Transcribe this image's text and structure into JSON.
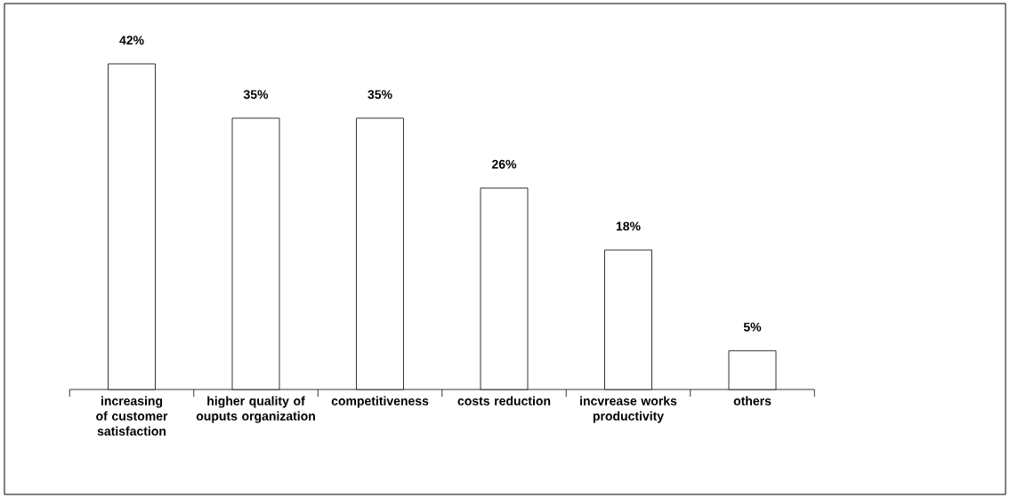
{
  "chart_data": {
    "type": "bar",
    "categories": [
      "increasing of customer satisfaction",
      "higher quality of ouputs organization",
      "competitiveness",
      "costs reduction",
      "incvrease works productivity",
      "others"
    ],
    "values": [
      42,
      35,
      35,
      26,
      18,
      5
    ],
    "value_labels": [
      "42%",
      "35%",
      "35%",
      "26%",
      "18%",
      "5%"
    ],
    "color": "#ffffff"
  }
}
